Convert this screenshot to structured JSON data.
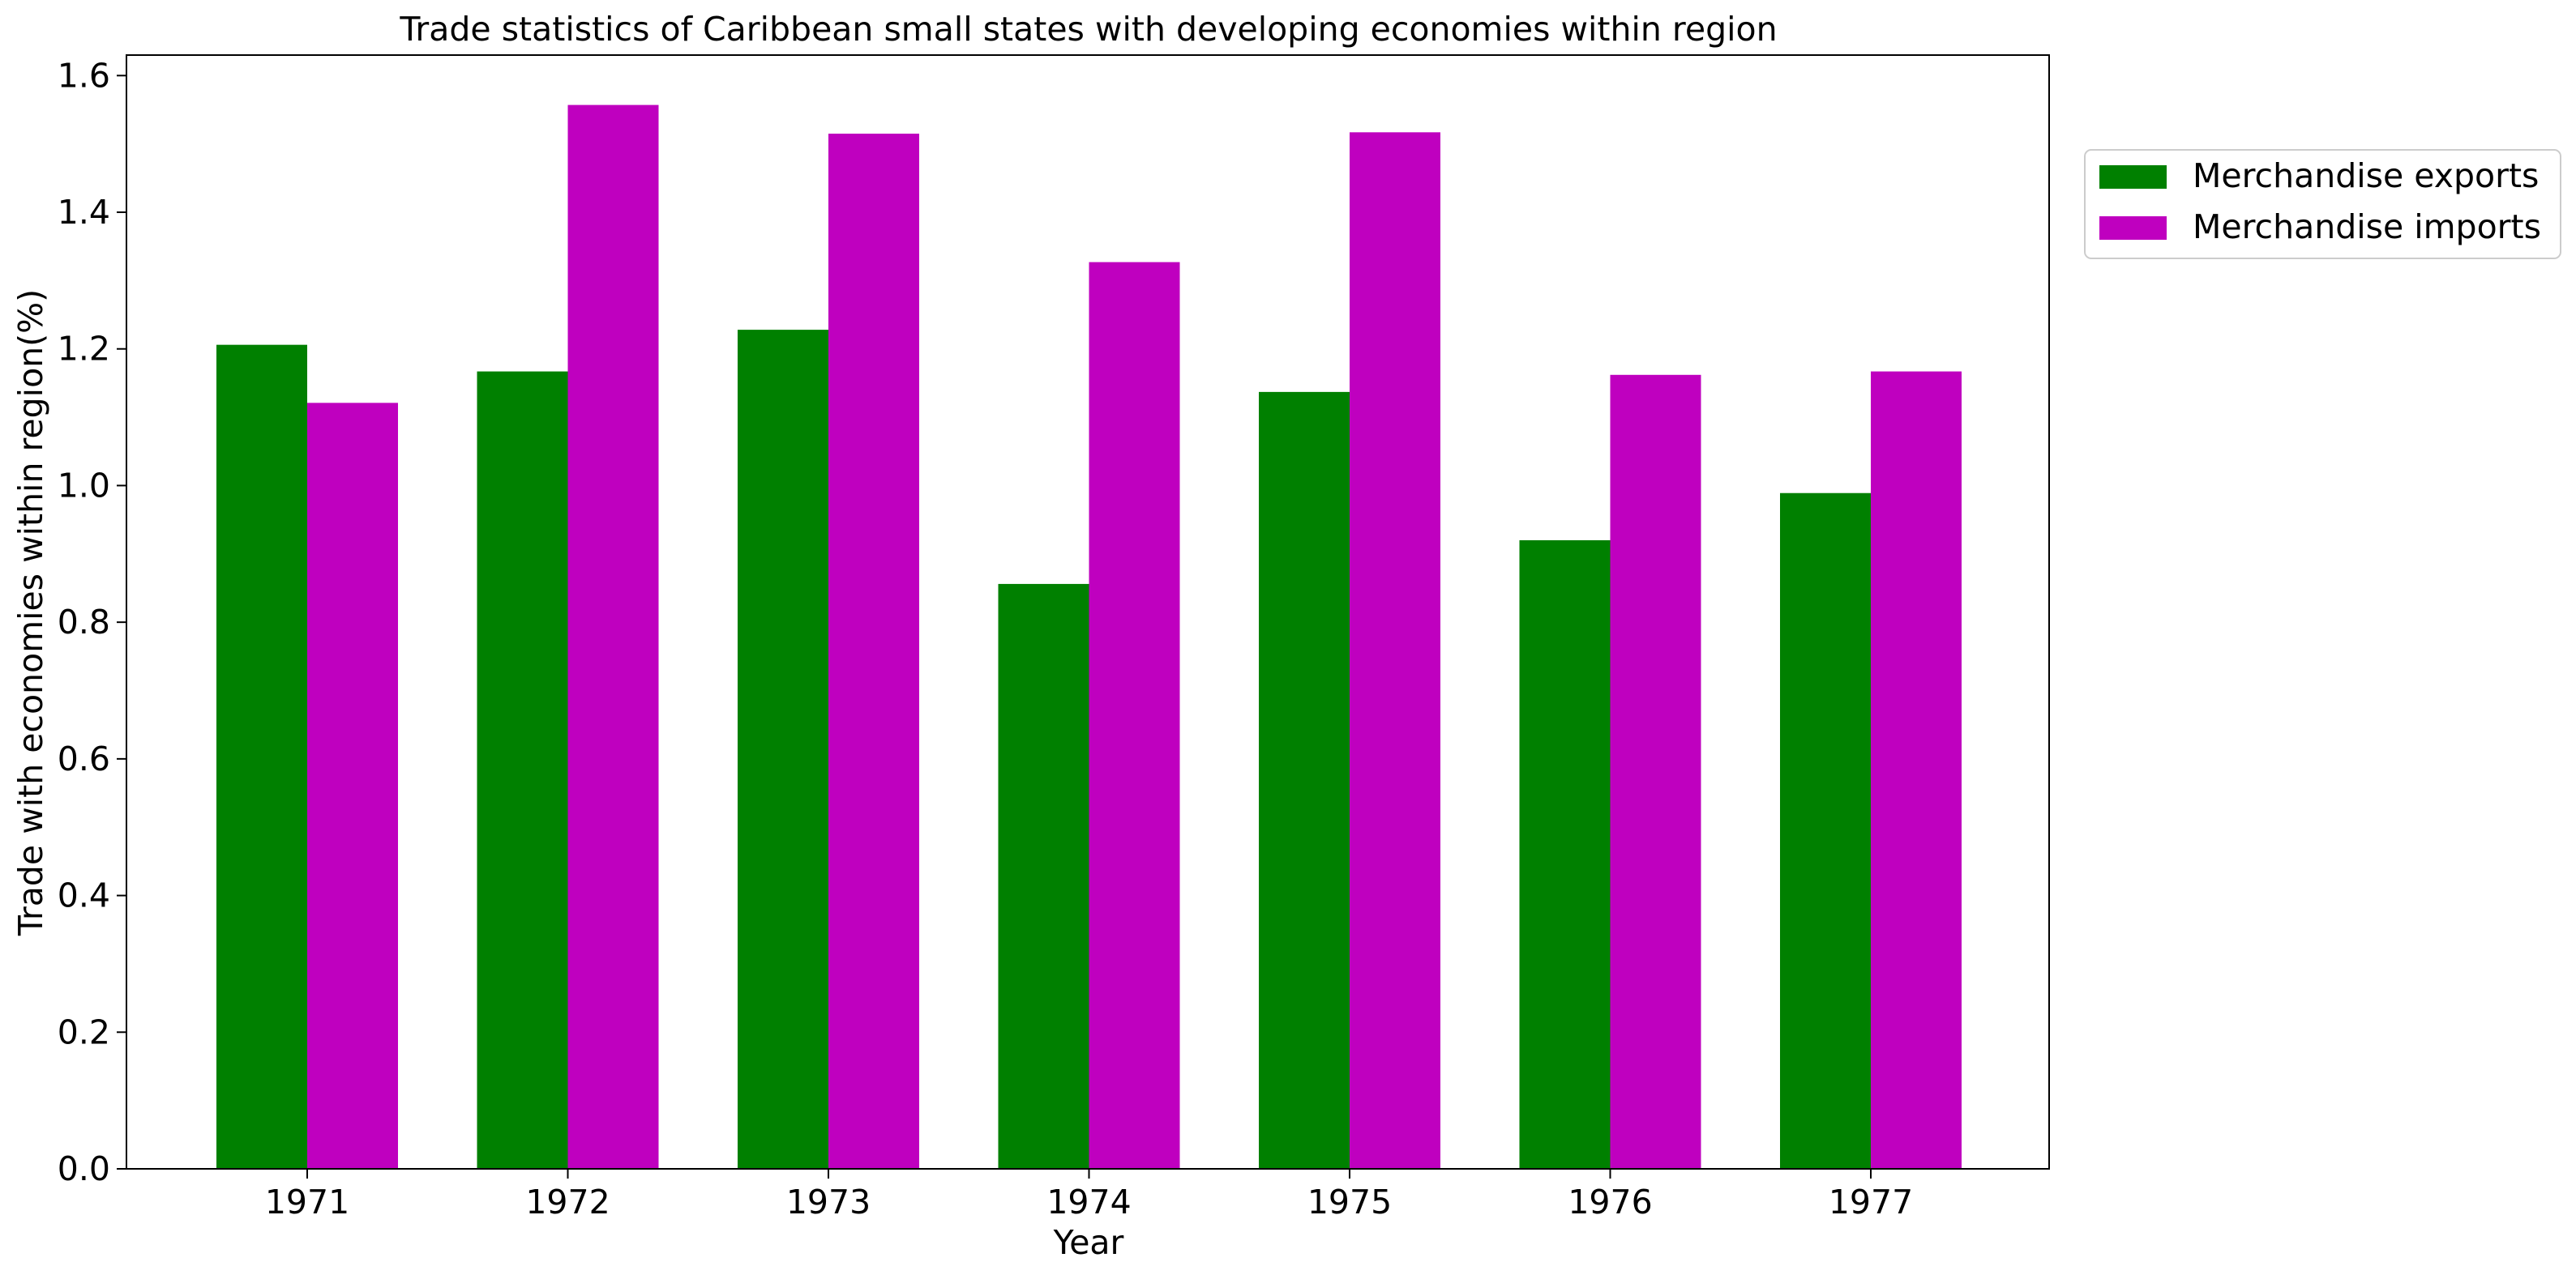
{
  "chart_data": {
    "type": "bar",
    "title": "Trade statistics of Caribbean small states with developing economies within region",
    "xlabel": "Year",
    "ylabel": "Trade with economies within region(%)",
    "categories": [
      "1971",
      "1972",
      "1973",
      "1974",
      "1975",
      "1976",
      "1977"
    ],
    "series": [
      {
        "name": "Merchandise exports",
        "color": "#008000",
        "values": [
          1.206,
          1.167,
          1.228,
          0.856,
          1.137,
          0.92,
          0.989
        ]
      },
      {
        "name": "Merchandise imports",
        "color": "#bf00bf",
        "values": [
          1.121,
          1.557,
          1.515,
          1.327,
          1.517,
          1.162,
          1.167
        ]
      }
    ],
    "ylim": [
      0,
      1.63
    ],
    "yticks": [
      "0.0",
      "0.2",
      "0.4",
      "0.6",
      "0.8",
      "1.0",
      "1.2",
      "1.4",
      "1.6"
    ],
    "grid": false,
    "legend": "outside-top-right"
  }
}
